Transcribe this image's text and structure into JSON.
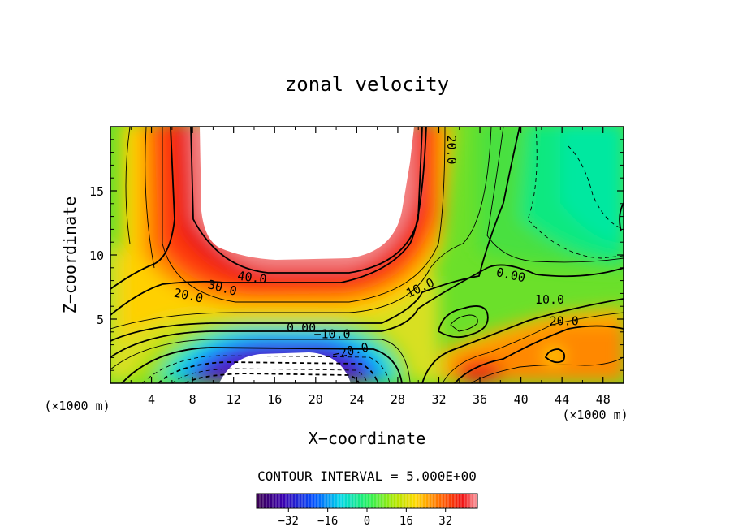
{
  "chart_data": {
    "type": "contour",
    "title": "zonal velocity",
    "xlabel": "X−coordinate",
    "ylabel": "Z−coordinate",
    "x_unit_left": "(×1000 m)",
    "x_unit_right": "(×1000 m)",
    "xlim": [
      0,
      50
    ],
    "ylim": [
      0,
      20
    ],
    "xticks": [
      4,
      8,
      12,
      16,
      20,
      24,
      28,
      32,
      36,
      40,
      44,
      48
    ],
    "yticks": [
      5,
      10,
      15
    ],
    "contour_labels": [
      {
        "text": "20.0",
        "x": 33.2,
        "y": 18.2,
        "rotate": 90
      },
      {
        "text": "40.0",
        "x": 13.8,
        "y": 8.2,
        "rotate": 8
      },
      {
        "text": "30.0",
        "x": 10.9,
        "y": 7.4,
        "rotate": 15
      },
      {
        "text": "20.0",
        "x": 7.6,
        "y": 6.8,
        "rotate": 12
      },
      {
        "text": "10.0",
        "x": 30.2,
        "y": 7.4,
        "rotate": -25
      },
      {
        "text": "0.00",
        "x": 39.0,
        "y": 8.4,
        "rotate": 12
      },
      {
        "text": "0.00",
        "x": 18.6,
        "y": 4.3,
        "rotate": 0
      },
      {
        "text": "−10.0",
        "x": 21.6,
        "y": 3.8,
        "rotate": 0
      },
      {
        "text": "−20.0",
        "x": 23.4,
        "y": 2.5,
        "rotate": -12
      },
      {
        "text": "10.0",
        "x": 42.8,
        "y": 6.5,
        "rotate": 0
      },
      {
        "text": "20.0",
        "x": 44.2,
        "y": 4.8,
        "rotate": 0
      }
    ],
    "contour_interval_text": "CONTOUR INTERVAL = 5.000E+00",
    "colorbar": {
      "range": [
        -45,
        45
      ],
      "ticks": [
        -32,
        -16,
        0,
        16,
        32
      ],
      "tick_labels": [
        "−32",
        "−16",
        "0",
        "16",
        "32"
      ]
    }
  }
}
